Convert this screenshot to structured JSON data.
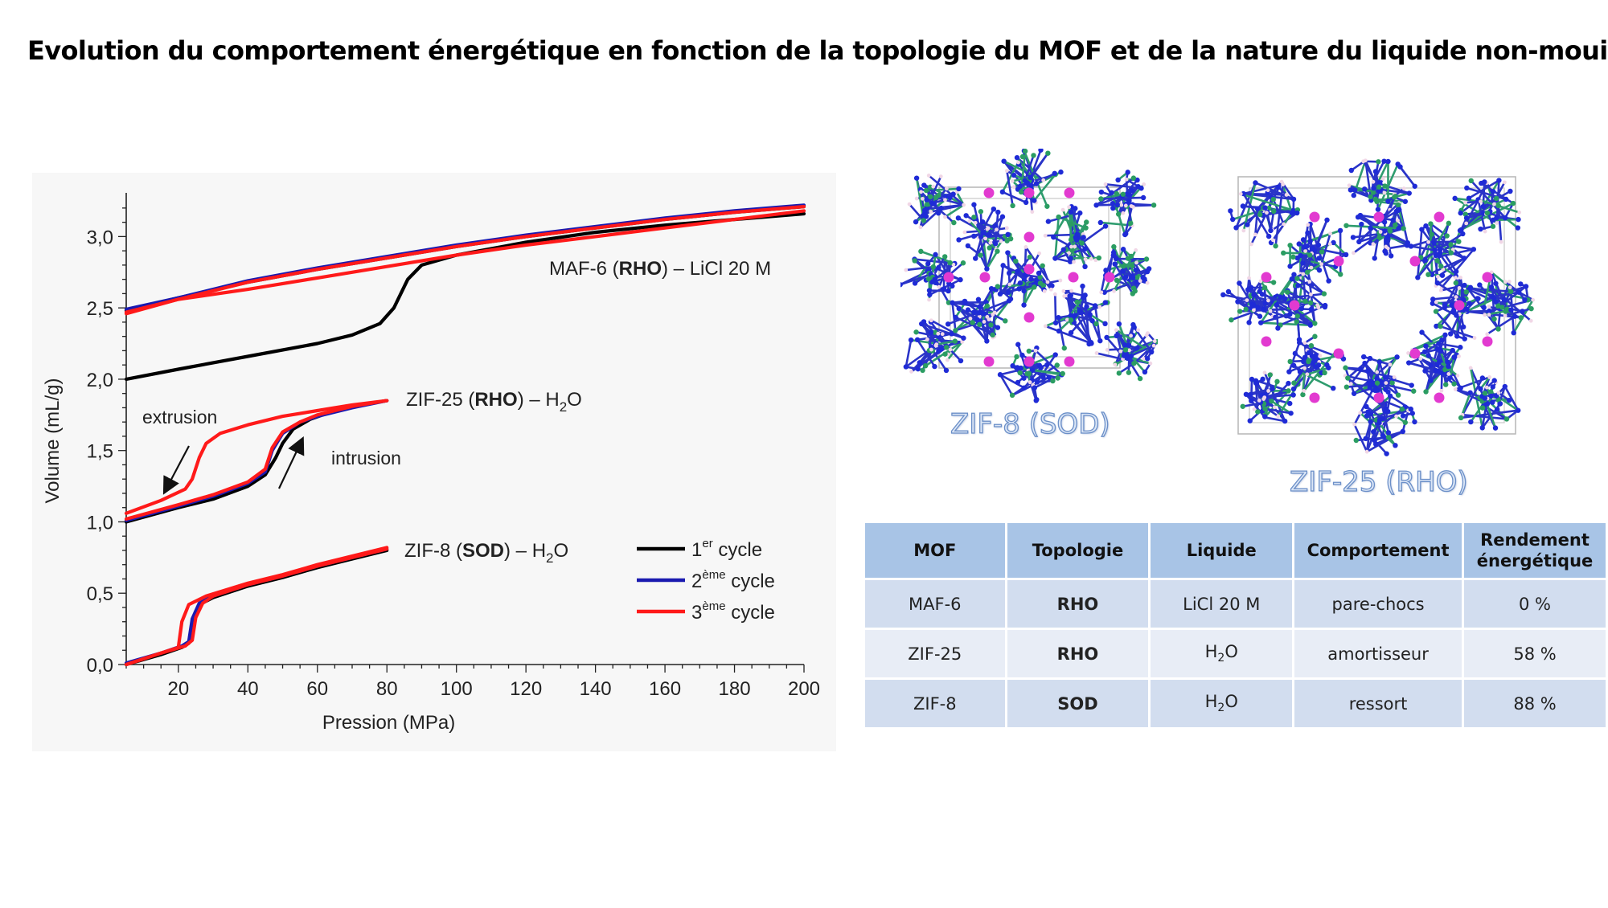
{
  "title": "Evolution du comportement énergétique en fonction de la topologie du MOF et de la nature du liquide non-mouillant",
  "chart_data": {
    "type": "line",
    "xlabel": "Pression (MPa)",
    "ylabel": "Volume (mL/g)",
    "xlim": [
      5,
      200
    ],
    "ylim": [
      0,
      3.25
    ],
    "x_ticks": [
      "20",
      "40",
      "60",
      "80",
      "100",
      "120",
      "140",
      "160",
      "180",
      "200"
    ],
    "y_ticks": [
      "0,0",
      "0,5",
      "1,0",
      "1,5",
      "2,0",
      "2,5",
      "3,0"
    ],
    "legend": {
      "position": "right",
      "entries": [
        {
          "label": "1er cycle",
          "color": "#000000"
        },
        {
          "label": "2ème cycle",
          "color": "#1a1ab0"
        },
        {
          "label": "3ème cycle",
          "color": "#ff1a1a"
        }
      ]
    },
    "annotations": {
      "maf6": "MAF-6 (RHO) – LiCl 20 M",
      "zif25": "ZIF-25 (RHO) – H2O",
      "zif8": "ZIF-8 (SOD) – H2O",
      "extrusion": "extrusion",
      "intrusion": "intrusion"
    },
    "series": [
      {
        "name": "1er cycle",
        "group": "MAF-6",
        "branch": "intrusion",
        "color": "#000000",
        "points": [
          [
            5,
            2.0
          ],
          [
            20,
            2.07
          ],
          [
            40,
            2.16
          ],
          [
            60,
            2.25
          ],
          [
            70,
            2.31
          ],
          [
            78,
            2.39
          ],
          [
            82,
            2.5
          ],
          [
            86,
            2.7
          ],
          [
            90,
            2.8
          ],
          [
            100,
            2.87
          ],
          [
            120,
            2.96
          ],
          [
            140,
            3.03
          ],
          [
            160,
            3.08
          ],
          [
            180,
            3.12
          ],
          [
            200,
            3.16
          ]
        ]
      },
      {
        "name": "1er cycle",
        "group": "MAF-6",
        "branch": "extrusion",
        "color": "#000000",
        "points": [
          [
            5,
            2.48
          ],
          [
            20,
            2.57
          ],
          [
            40,
            2.68
          ],
          [
            60,
            2.77
          ],
          [
            80,
            2.85
          ],
          [
            100,
            2.93
          ],
          [
            120,
            3.0
          ],
          [
            140,
            3.06
          ],
          [
            160,
            3.12
          ],
          [
            180,
            3.17
          ],
          [
            200,
            3.21
          ]
        ]
      },
      {
        "name": "2ème cycle",
        "group": "MAF-6",
        "branch": "compression",
        "color": "#1a1ab0",
        "points": [
          [
            5,
            2.49
          ],
          [
            20,
            2.57
          ],
          [
            40,
            2.69
          ],
          [
            60,
            2.78
          ],
          [
            80,
            2.86
          ],
          [
            100,
            2.94
          ],
          [
            120,
            3.01
          ],
          [
            140,
            3.07
          ],
          [
            160,
            3.13
          ],
          [
            180,
            3.18
          ],
          [
            200,
            3.22
          ]
        ]
      },
      {
        "name": "3ème cycle",
        "group": "MAF-6",
        "branch": "compression",
        "color": "#ff1a1a",
        "points": [
          [
            5,
            2.47
          ],
          [
            20,
            2.56
          ],
          [
            40,
            2.68
          ],
          [
            60,
            2.77
          ],
          [
            80,
            2.85
          ],
          [
            100,
            2.93
          ],
          [
            120,
            3.0
          ],
          [
            140,
            3.06
          ],
          [
            160,
            3.12
          ],
          [
            180,
            3.17
          ],
          [
            200,
            3.21
          ]
        ]
      },
      {
        "name": "3ème cycle",
        "group": "MAF-6",
        "branch": "decompression",
        "color": "#ff1a1a",
        "points": [
          [
            5,
            2.46
          ],
          [
            20,
            2.56
          ],
          [
            40,
            2.63
          ],
          [
            60,
            2.71
          ],
          [
            80,
            2.79
          ],
          [
            100,
            2.87
          ],
          [
            120,
            2.94
          ],
          [
            140,
            3.0
          ],
          [
            160,
            3.06
          ],
          [
            180,
            3.12
          ],
          [
            200,
            3.18
          ]
        ]
      },
      {
        "name": "1er cycle",
        "group": "ZIF-25",
        "branch": "intrusion",
        "color": "#000000",
        "points": [
          [
            5,
            1.0
          ],
          [
            20,
            1.1
          ],
          [
            30,
            1.16
          ],
          [
            40,
            1.25
          ],
          [
            45,
            1.33
          ],
          [
            48,
            1.45
          ],
          [
            50,
            1.55
          ],
          [
            53,
            1.65
          ],
          [
            58,
            1.72
          ],
          [
            65,
            1.78
          ],
          [
            75,
            1.83
          ],
          [
            80,
            1.85
          ]
        ]
      },
      {
        "name": "2ème cycle",
        "group": "ZIF-25",
        "branch": "intrusion",
        "color": "#1a1ab0",
        "points": [
          [
            5,
            1.01
          ],
          [
            20,
            1.11
          ],
          [
            30,
            1.18
          ],
          [
            40,
            1.27
          ],
          [
            45,
            1.35
          ],
          [
            47,
            1.5
          ],
          [
            50,
            1.62
          ],
          [
            55,
            1.7
          ],
          [
            60,
            1.74
          ],
          [
            70,
            1.8
          ],
          [
            80,
            1.85
          ]
        ]
      },
      {
        "name": "3ème cycle",
        "group": "ZIF-25",
        "branch": "intrusion",
        "color": "#ff1a1a",
        "points": [
          [
            5,
            1.02
          ],
          [
            20,
            1.12
          ],
          [
            30,
            1.19
          ],
          [
            40,
            1.28
          ],
          [
            45,
            1.37
          ],
          [
            47,
            1.52
          ],
          [
            50,
            1.63
          ],
          [
            55,
            1.7
          ],
          [
            60,
            1.75
          ],
          [
            70,
            1.81
          ],
          [
            80,
            1.85
          ]
        ]
      },
      {
        "name": "3ème cycle",
        "group": "ZIF-25",
        "branch": "extrusion",
        "color": "#ff1a1a",
        "points": [
          [
            5,
            1.06
          ],
          [
            15,
            1.15
          ],
          [
            22,
            1.23
          ],
          [
            24,
            1.3
          ],
          [
            26,
            1.45
          ],
          [
            28,
            1.55
          ],
          [
            32,
            1.62
          ],
          [
            40,
            1.68
          ],
          [
            50,
            1.74
          ],
          [
            60,
            1.78
          ],
          [
            70,
            1.82
          ],
          [
            80,
            1.85
          ]
        ]
      },
      {
        "name": "1er cycle",
        "group": "ZIF-8",
        "branch": "intrusion",
        "color": "#000000",
        "points": [
          [
            5,
            0.0
          ],
          [
            15,
            0.07
          ],
          [
            21,
            0.12
          ],
          [
            23,
            0.15
          ],
          [
            24,
            0.3
          ],
          [
            26,
            0.42
          ],
          [
            30,
            0.47
          ],
          [
            40,
            0.55
          ],
          [
            50,
            0.61
          ],
          [
            60,
            0.68
          ],
          [
            70,
            0.74
          ],
          [
            80,
            0.8
          ]
        ]
      },
      {
        "name": "2ème cycle",
        "group": "ZIF-8",
        "branch": "intrusion",
        "color": "#1a1ab0",
        "points": [
          [
            5,
            0.01
          ],
          [
            15,
            0.08
          ],
          [
            21,
            0.13
          ],
          [
            23,
            0.16
          ],
          [
            24,
            0.32
          ],
          [
            26,
            0.43
          ],
          [
            30,
            0.48
          ],
          [
            40,
            0.56
          ],
          [
            50,
            0.62
          ],
          [
            60,
            0.69
          ],
          [
            70,
            0.75
          ],
          [
            80,
            0.81
          ]
        ]
      },
      {
        "name": "3ème cycle",
        "group": "ZIF-8",
        "branch": "intrusion",
        "color": "#ff1a1a",
        "points": [
          [
            5,
            0.0
          ],
          [
            15,
            0.08
          ],
          [
            22,
            0.13
          ],
          [
            24,
            0.17
          ],
          [
            25,
            0.33
          ],
          [
            27,
            0.43
          ],
          [
            30,
            0.48
          ],
          [
            40,
            0.56
          ],
          [
            50,
            0.62
          ],
          [
            60,
            0.69
          ],
          [
            70,
            0.75
          ],
          [
            80,
            0.81
          ]
        ]
      },
      {
        "name": "3ème cycle",
        "group": "ZIF-8",
        "branch": "extrusion",
        "color": "#ff1a1a",
        "points": [
          [
            5,
            0.0
          ],
          [
            15,
            0.08
          ],
          [
            20,
            0.12
          ],
          [
            21,
            0.3
          ],
          [
            23,
            0.42
          ],
          [
            28,
            0.48
          ],
          [
            40,
            0.57
          ],
          [
            50,
            0.63
          ],
          [
            60,
            0.7
          ],
          [
            70,
            0.76
          ],
          [
            80,
            0.82
          ]
        ]
      }
    ]
  },
  "structures": {
    "zif8_label": "ZIF-8 (SOD)",
    "zif25_label": "ZIF-25 (RHO)"
  },
  "table": {
    "headers": [
      "MOF",
      "Topologie",
      "Liquide",
      "Comportement",
      "Rendement énergétique"
    ],
    "rows": [
      {
        "mof": "MAF-6",
        "topologie": "RHO",
        "liquide": "LiCl 20 M",
        "comportement": "pare-chocs",
        "rendement": "0 %"
      },
      {
        "mof": "ZIF-25",
        "topologie": "RHO",
        "liquide": "H2O",
        "comportement": "amortisseur",
        "rendement": "58 %"
      },
      {
        "mof": "ZIF-8",
        "topologie": "SOD",
        "liquide": "H2O",
        "comportement": "ressort",
        "rendement": "88 %"
      }
    ]
  }
}
